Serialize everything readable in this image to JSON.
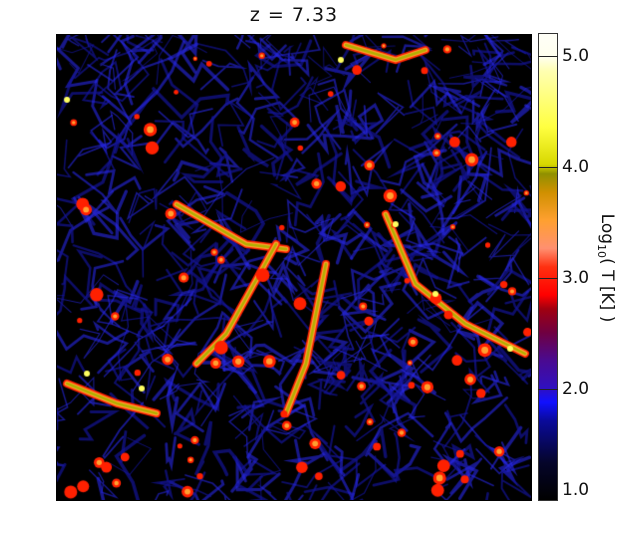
{
  "chart_data": {
    "type": "heatmap",
    "title": "z  =  7.33",
    "colorbar": {
      "label_prefix": "Log",
      "label_sub": "10",
      "label_suffix": "( T [K] )",
      "range": [
        1.0,
        5.2
      ],
      "ticks": [
        "1.0",
        "2.0",
        "3.0",
        "4.0",
        "5.0"
      ],
      "tick_values": [
        1.0,
        2.0,
        3.0,
        4.0,
        5.0
      ],
      "colormap": [
        "#000000",
        "#1010ff",
        "#4a0a90",
        "#ff0000",
        "#ffa030",
        "#909000",
        "#ffff40",
        "#ffffff"
      ]
    }
  }
}
